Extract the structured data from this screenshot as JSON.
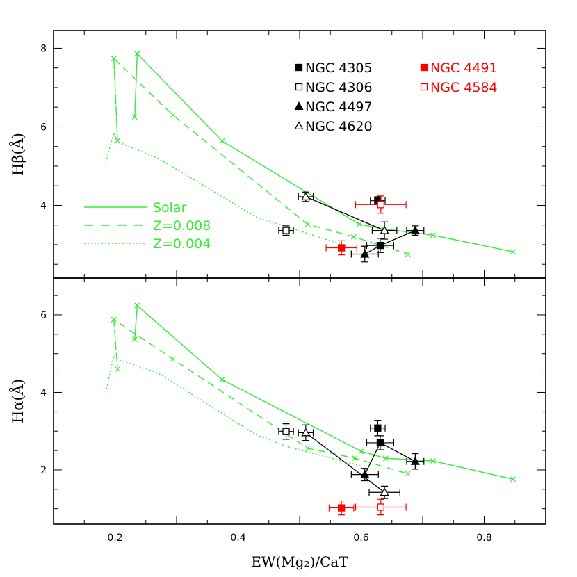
{
  "chart_data": [
    {
      "type": "line",
      "panel": "top",
      "ylabel": "Hβ(Å)",
      "xlim": [
        0.1,
        0.9
      ],
      "ylim": [
        2.15,
        8.45
      ],
      "yticks": [
        "4",
        "6",
        "8"
      ],
      "yticks_values": [
        4,
        6,
        8
      ],
      "model_series": [
        {
          "name": "Solar",
          "style": "solid",
          "x": [
            0.236,
            0.232,
            0.236,
            0.374,
            0.597,
            0.637,
            0.717,
            0.847
          ],
          "y": [
            7.86,
            6.25,
            7.86,
            5.64,
            3.52,
            3.4,
            3.24,
            2.82
          ]
        },
        {
          "name": "Z=0.008",
          "style": "dashed",
          "x": [
            0.198,
            0.204,
            0.198,
            0.294,
            0.513,
            0.588,
            0.676
          ],
          "y": [
            7.74,
            5.65,
            7.74,
            6.3,
            3.52,
            3.2,
            2.76
          ]
        },
        {
          "name": "Z=0.004",
          "style": "dotted",
          "x": [
            0.185,
            0.198,
            0.204,
            0.27,
            0.43,
            0.58
          ],
          "y": [
            5.1,
            5.85,
            5.62,
            5.2,
            3.7,
            2.95
          ]
        }
      ],
      "galaxies": [
        {
          "name": "NGC 4305",
          "color": "#000000",
          "marker": "filled-square",
          "points": [
            {
              "x": 0.627,
              "y": 4.12,
              "xerr": 0.012,
              "yerr": 0.1
            },
            {
              "x": 0.631,
              "y": 2.98,
              "xerr": 0.022,
              "yerr": 0.18
            }
          ]
        },
        {
          "name": "NGC 4306",
          "color": "#000000",
          "marker": "open-square",
          "points": [
            {
              "x": 0.478,
              "y": 3.36,
              "xerr": 0.012,
              "yerr": 0.12
            }
          ]
        },
        {
          "name": "NGC 4497",
          "color": "#000000",
          "marker": "filled-triangle",
          "points": [
            {
              "x": 0.606,
              "y": 2.76,
              "xerr": 0.022,
              "yerr": 0.2
            },
            {
              "x": 0.688,
              "y": 3.36,
              "xerr": 0.014,
              "yerr": 0.12
            }
          ]
        },
        {
          "name": "NGC 4620",
          "color": "#000000",
          "marker": "open-triangle",
          "points": [
            {
              "x": 0.51,
              "y": 4.22,
              "xerr": 0.012,
              "yerr": 0.12
            },
            {
              "x": 0.638,
              "y": 3.36,
              "xerr": 0.02,
              "yerr": 0.22
            }
          ]
        },
        {
          "name": "NGC 4491",
          "color": "#ff0000",
          "marker": "filled-square",
          "points": [
            {
              "x": 0.568,
              "y": 2.92,
              "xerr": 0.025,
              "yerr": 0.18
            }
          ]
        },
        {
          "name": "NGC 4584",
          "color": "#ff0000",
          "marker": "open-square",
          "points": [
            {
              "x": 0.632,
              "y": 4.02,
              "xerr": 0.041,
              "yerr": 0.22
            }
          ]
        }
      ],
      "connectors": [
        {
          "x": [
            0.51,
            0.638
          ],
          "y": [
            4.22,
            3.36
          ]
        },
        {
          "x": [
            0.606,
            0.631,
            0.688
          ],
          "y": [
            2.76,
            2.98,
            3.36
          ]
        }
      ],
      "legend_galaxies": [
        "NGC 4305",
        "NGC 4306",
        "NGC 4497",
        "NGC 4620",
        "NGC 4491",
        "NGC 4584"
      ],
      "legend_models": [
        "Solar",
        "Z=0.008",
        "Z=0.004"
      ]
    },
    {
      "type": "line",
      "panel": "bottom",
      "ylabel": "Hα(Å)",
      "xlabel": "EW(Mg₂)/CaT",
      "xlim": [
        0.1,
        0.9
      ],
      "ylim": [
        0.6,
        6.95
      ],
      "yticks": [
        "2",
        "4",
        "6"
      ],
      "yticks_values": [
        2,
        4,
        6
      ],
      "xticks": [
        "0.2",
        "0.4",
        "0.6",
        "0.8"
      ],
      "xticks_values": [
        0.2,
        0.4,
        0.6,
        0.8
      ],
      "model_series": [
        {
          "name": "Solar",
          "style": "solid",
          "x": [
            0.236,
            0.232,
            0.236,
            0.374,
            0.6,
            0.64,
            0.717,
            0.847
          ],
          "y": [
            6.24,
            5.37,
            6.24,
            4.33,
            2.48,
            2.3,
            2.23,
            1.76
          ]
        },
        {
          "name": "Z=0.008",
          "style": "dashed",
          "x": [
            0.198,
            0.204,
            0.198,
            0.294,
            0.513,
            0.59,
            0.676
          ],
          "y": [
            5.88,
            4.6,
            5.88,
            4.86,
            2.56,
            2.3,
            1.9
          ]
        },
        {
          "name": "Z=0.004",
          "style": "dotted",
          "x": [
            0.185,
            0.198,
            0.204,
            0.27,
            0.43,
            0.48,
            0.6
          ],
          "y": [
            4.0,
            4.95,
            4.85,
            4.5,
            2.9,
            2.6,
            2.1
          ]
        }
      ],
      "galaxies": [
        {
          "name": "NGC 4305",
          "color": "#000000",
          "marker": "filled-square",
          "points": [
            {
              "x": 0.627,
              "y": 3.08,
              "xerr": 0.012,
              "yerr": 0.2
            },
            {
              "x": 0.631,
              "y": 2.7,
              "xerr": 0.022,
              "yerr": 0.18
            }
          ]
        },
        {
          "name": "NGC 4306",
          "color": "#000000",
          "marker": "open-square",
          "points": [
            {
              "x": 0.478,
              "y": 2.99,
              "xerr": 0.012,
              "yerr": 0.2
            }
          ]
        },
        {
          "name": "NGC 4497",
          "color": "#000000",
          "marker": "filled-triangle",
          "points": [
            {
              "x": 0.606,
              "y": 1.88,
              "xerr": 0.022,
              "yerr": 0.16
            },
            {
              "x": 0.688,
              "y": 2.22,
              "xerr": 0.014,
              "yerr": 0.2
            }
          ]
        },
        {
          "name": "NGC 4620",
          "color": "#000000",
          "marker": "open-triangle",
          "points": [
            {
              "x": 0.51,
              "y": 2.96,
              "xerr": 0.012,
              "yerr": 0.2
            },
            {
              "x": 0.638,
              "y": 1.42,
              "xerr": 0.025,
              "yerr": 0.16
            }
          ]
        },
        {
          "name": "NGC 4491",
          "color": "#ff0000",
          "marker": "filled-square",
          "points": [
            {
              "x": 0.568,
              "y": 1.02,
              "xerr": 0.02,
              "yerr": 0.18
            }
          ]
        },
        {
          "name": "NGC 4584",
          "color": "#ff0000",
          "marker": "open-square",
          "points": [
            {
              "x": 0.632,
              "y": 1.04,
              "xerr": 0.041,
              "yerr": 0.2
            }
          ]
        }
      ],
      "connectors": [
        {
          "x": [
            0.51,
            0.638
          ],
          "y": [
            2.96,
            1.42
          ]
        },
        {
          "x": [
            0.606,
            0.631,
            0.688
          ],
          "y": [
            1.88,
            2.7,
            2.22
          ]
        }
      ]
    }
  ],
  "colors": {
    "model": "#33ee33",
    "black": "#000000",
    "red": "#ff0000"
  }
}
